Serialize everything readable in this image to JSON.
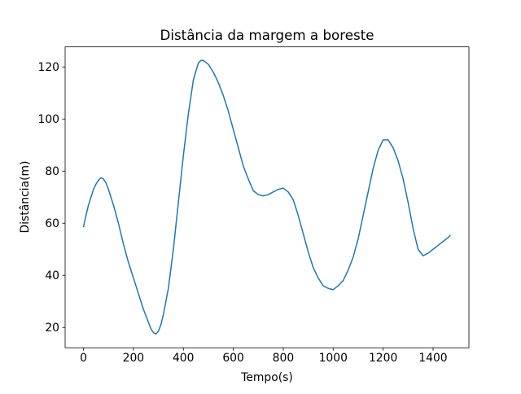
{
  "chart_data": {
    "type": "line",
    "title": "Distância da margem a boreste",
    "x_label": "Tempo(s)",
    "y_label": "Distância(m)",
    "x": [
      0,
      10,
      20,
      30,
      40,
      50,
      60,
      70,
      80,
      90,
      100,
      120,
      140,
      160,
      180,
      200,
      220,
      240,
      260,
      270,
      280,
      290,
      300,
      310,
      320,
      340,
      360,
      380,
      400,
      420,
      440,
      460,
      470,
      480,
      500,
      520,
      540,
      560,
      580,
      600,
      620,
      640,
      660,
      680,
      700,
      720,
      740,
      760,
      780,
      800,
      820,
      840,
      860,
      880,
      900,
      920,
      940,
      960,
      980,
      1000,
      1020,
      1040,
      1060,
      1080,
      1100,
      1120,
      1140,
      1160,
      1180,
      1200,
      1220,
      1240,
      1260,
      1280,
      1300,
      1320,
      1340,
      1360,
      1380,
      1400,
      1420,
      1440,
      1460,
      1470
    ],
    "series": [
      {
        "color": "#1f77b4",
        "values": [
          58.5,
          63,
          67,
          70,
          73,
          75,
          76.5,
          77.5,
          77,
          75.5,
          73,
          67,
          60,
          52,
          45,
          39,
          33,
          27,
          22,
          19.5,
          18,
          17.5,
          18.5,
          21,
          25,
          35,
          50,
          68,
          86,
          102,
          115,
          121.5,
          122.5,
          122.5,
          121,
          118,
          114,
          109,
          103,
          96,
          89,
          82,
          77,
          72.5,
          71,
          70.5,
          71,
          72,
          73,
          73.5,
          72,
          69,
          63,
          56,
          49,
          43,
          39,
          36,
          35,
          34.5,
          36,
          38,
          42,
          47,
          54,
          63,
          72,
          81,
          88,
          92,
          92,
          89,
          84,
          77,
          68,
          58,
          50,
          47.5,
          48.5,
          50,
          51.5,
          53,
          54.5,
          55.5
        ]
      }
    ],
    "xlim": [
      -73.5,
      1543.5
    ],
    "ylim": [
      12.2,
      127.7
    ],
    "xticks": [
      0,
      200,
      400,
      600,
      800,
      1000,
      1200,
      1400
    ],
    "yticks": [
      20,
      40,
      60,
      80,
      100,
      120
    ],
    "grid": false
  }
}
